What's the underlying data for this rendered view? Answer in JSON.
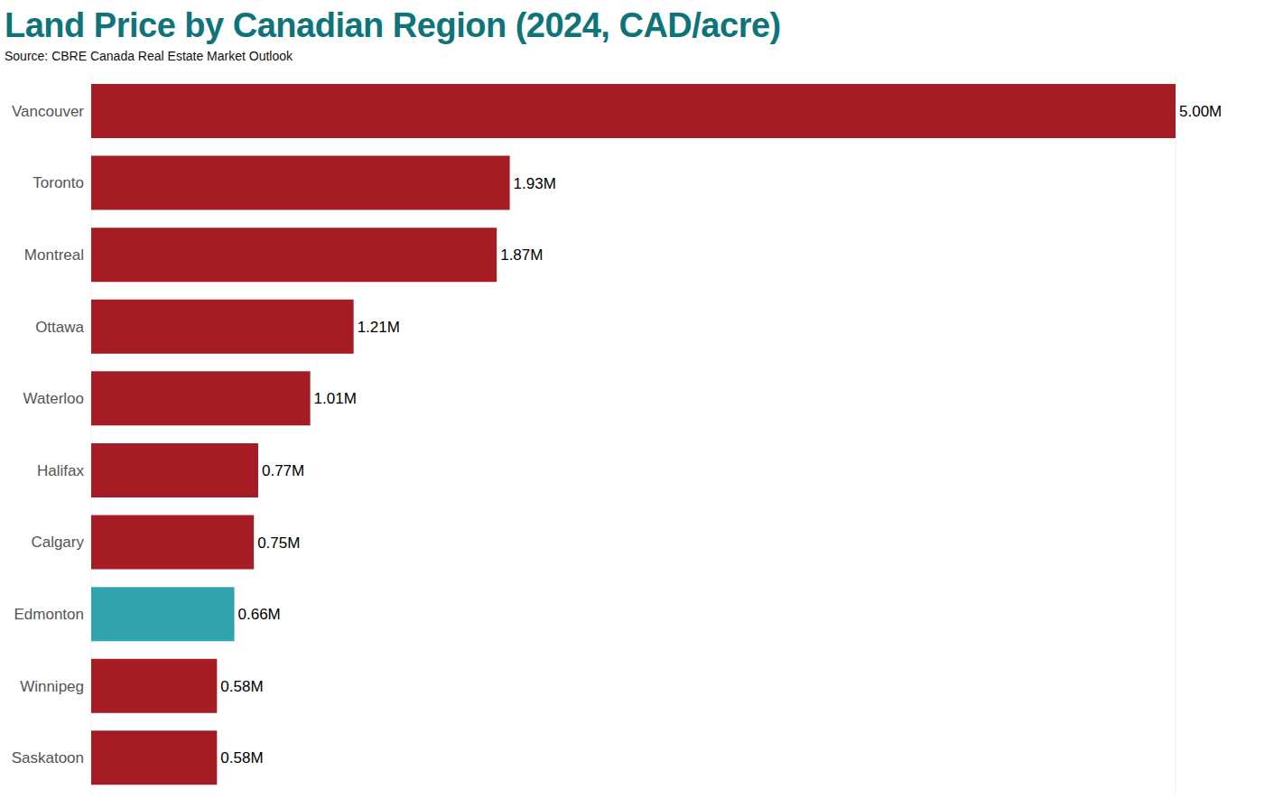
{
  "chart_data": {
    "type": "bar",
    "title": "Land Price by Canadian Region (2024, CAD/acre)",
    "subtitle": "Source: CBRE Canada Real Estate Market Outlook",
    "orientation": "horizontal",
    "categories": [
      "Vancouver",
      "Toronto",
      "Montreal",
      "Ottawa",
      "Waterloo",
      "Halifax",
      "Calgary",
      "Edmonton",
      "Winnipeg",
      "Saskatoon"
    ],
    "values": [
      5000000,
      1930000,
      1870000,
      1210000,
      1010000,
      770000,
      750000,
      660000,
      580000,
      580000
    ],
    "value_labels": [
      "5.00M",
      "1.93M",
      "1.87M",
      "1.21M",
      "1.01M",
      "0.77M",
      "0.75M",
      "0.66M",
      "0.58M",
      "0.58M"
    ],
    "colors": [
      "#a51c24",
      "#a51c24",
      "#a51c24",
      "#a51c24",
      "#a51c24",
      "#a51c24",
      "#a51c24",
      "#30a3ac",
      "#a51c24",
      "#a51c24"
    ],
    "xlim": [
      0,
      5000000
    ],
    "xticks": [
      0,
      500000,
      1000000,
      1500000,
      2000000,
      2500000,
      3000000,
      3500000,
      4000000,
      4500000,
      5000000
    ],
    "grid": true,
    "data_labels": true,
    "tick_labels": "y"
  }
}
